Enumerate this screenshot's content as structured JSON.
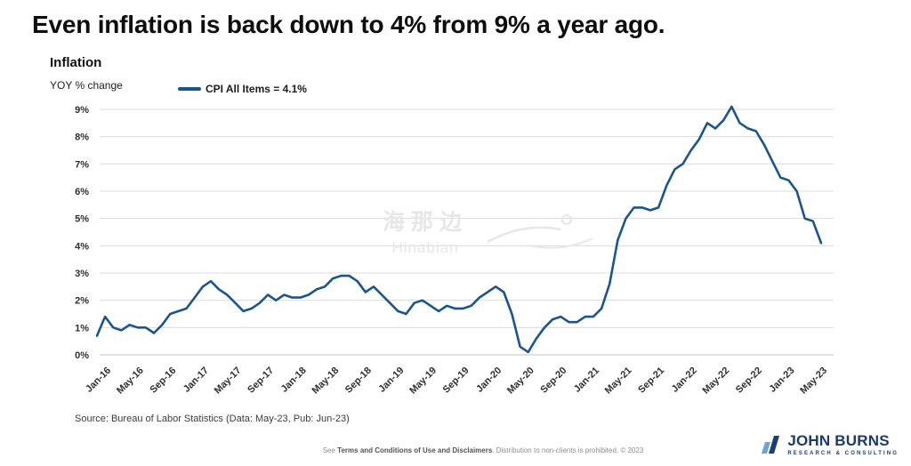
{
  "page": {
    "title": "Even inflation is back down to 4% from 9% a year ago.",
    "source_note": "Source: Bureau of Labor Statistics (Data: May-23, Pub: Jun-23)",
    "footer": {
      "prefix": "See ",
      "link": "Terms and Conditions of Use and Disclaimers",
      "suffix": ". Distribution to non-clients is prohibited. © 2023"
    },
    "logo": {
      "name": "JOHN BURNS",
      "subtitle": "RESEARCH & CONSULTING"
    },
    "watermark": {
      "cjk": "海那边",
      "latin": "Hinabian"
    }
  },
  "chart_data": {
    "type": "line",
    "title": "Inflation",
    "ylabel": "YOY % change",
    "legend": "CPI All Items = 4.1%",
    "series_name": "CPI All Items",
    "latest_value": 4.1,
    "line_color": "#1a5591",
    "grid": true,
    "ylim": [
      0,
      9
    ],
    "y_ticks": [
      "0%",
      "1%",
      "2%",
      "3%",
      "4%",
      "5%",
      "6%",
      "7%",
      "8%",
      "9%"
    ],
    "x_frequency": "monthly",
    "x_start": "Dec-15",
    "x_end": "May-23",
    "x_tick_first_index": 1,
    "x_tick_step": 4,
    "x_tick_labels": [
      "Jan-16",
      "May-16",
      "Sep-16",
      "Jan-17",
      "May-17",
      "Sep-17",
      "Jan-18",
      "May-18",
      "Sep-18",
      "Jan-19",
      "May-19",
      "Sep-19",
      "Jan-20",
      "May-20",
      "Sep-20",
      "Jan-21",
      "May-21",
      "Sep-21",
      "Jan-22",
      "May-22",
      "Sep-22",
      "Jan-23",
      "May-23"
    ],
    "values": [
      0.7,
      1.4,
      1.0,
      0.9,
      1.1,
      1.0,
      1.0,
      0.8,
      1.1,
      1.5,
      1.6,
      1.7,
      2.1,
      2.5,
      2.7,
      2.4,
      2.2,
      1.9,
      1.6,
      1.7,
      1.9,
      2.2,
      2.0,
      2.2,
      2.1,
      2.1,
      2.2,
      2.4,
      2.5,
      2.8,
      2.9,
      2.9,
      2.7,
      2.3,
      2.5,
      2.2,
      1.9,
      1.6,
      1.5,
      1.9,
      2.0,
      1.8,
      1.6,
      1.8,
      1.7,
      1.7,
      1.8,
      2.1,
      2.3,
      2.5,
      2.3,
      1.5,
      0.3,
      0.1,
      0.6,
      1.0,
      1.3,
      1.4,
      1.2,
      1.2,
      1.4,
      1.4,
      1.7,
      2.6,
      4.2,
      5.0,
      5.4,
      5.4,
      5.3,
      5.4,
      6.2,
      6.8,
      7.0,
      7.5,
      7.9,
      8.5,
      8.3,
      8.6,
      9.1,
      8.5,
      8.3,
      8.2,
      7.7,
      7.1,
      6.5,
      6.4,
      6.0,
      5.0,
      4.9,
      4.1
    ]
  }
}
